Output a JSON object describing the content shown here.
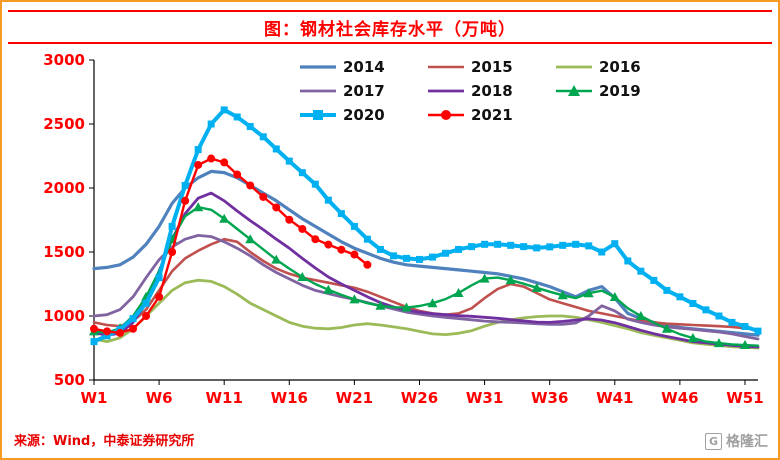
{
  "header": {
    "title": "图：钢材社会库存水平（万吨）"
  },
  "footer": {
    "source": "来源：Wind，中泰证券研究所",
    "logo_text": "格隆汇",
    "logo_letter": "G"
  },
  "theme": {
    "accent_red": "#FF0000",
    "frame_orange": "#F59A23",
    "logo_gray": "#A0A0A0"
  },
  "chart_data": {
    "type": "line",
    "title": "图：钢材社会库存水平（万吨）",
    "xlabel": "",
    "ylabel": "",
    "ylim": [
      500,
      3000
    ],
    "y_ticks": [
      500,
      1000,
      1500,
      2000,
      2500,
      3000
    ],
    "x_ticks": [
      "W1",
      "W6",
      "W11",
      "W16",
      "W21",
      "W26",
      "W31",
      "W36",
      "W41",
      "W46",
      "W51"
    ],
    "x_tick_weeks": [
      1,
      6,
      11,
      16,
      21,
      26,
      31,
      36,
      41,
      46,
      51
    ],
    "legend_position": "top-center",
    "grid": false,
    "series": [
      {
        "name": "2014",
        "color": "#4F81BD",
        "width": 3.2,
        "marker": "none",
        "values": [
          1370,
          1380,
          1400,
          1460,
          1560,
          1700,
          1880,
          2000,
          2080,
          2130,
          2120,
          2080,
          2020,
          1960,
          1900,
          1830,
          1760,
          1700,
          1640,
          1580,
          1530,
          1490,
          1450,
          1420,
          1400,
          1390,
          1380,
          1370,
          1360,
          1350,
          1340,
          1330,
          1310,
          1290,
          1260,
          1230,
          1190,
          1150,
          1200,
          1230,
          1140,
          1020,
          980,
          950,
          930,
          910,
          900,
          890,
          880,
          870,
          860,
          850
        ]
      },
      {
        "name": "2015",
        "color": "#C0504D",
        "width": 2.6,
        "marker": "none",
        "values": [
          950,
          930,
          920,
          960,
          1050,
          1200,
          1350,
          1450,
          1510,
          1560,
          1600,
          1580,
          1500,
          1430,
          1370,
          1330,
          1300,
          1280,
          1260,
          1240,
          1220,
          1190,
          1150,
          1110,
          1070,
          1040,
          1020,
          1010,
          1020,
          1060,
          1140,
          1210,
          1250,
          1230,
          1180,
          1130,
          1100,
          1070,
          1040,
          1020,
          1000,
          980,
          960,
          950,
          940,
          935,
          930,
          925,
          920,
          915,
          905,
          895
        ]
      },
      {
        "name": "2016",
        "color": "#9BBB59",
        "width": 2.8,
        "marker": "none",
        "values": [
          820,
          800,
          830,
          900,
          1000,
          1100,
          1200,
          1260,
          1280,
          1270,
          1230,
          1170,
          1100,
          1050,
          1000,
          950,
          920,
          905,
          900,
          910,
          930,
          940,
          930,
          915,
          900,
          880,
          860,
          855,
          865,
          885,
          920,
          950,
          970,
          985,
          995,
          1000,
          1000,
          990,
          970,
          950,
          925,
          900,
          870,
          850,
          830,
          810,
          790,
          780,
          770,
          760,
          755,
          750
        ]
      },
      {
        "name": "2017",
        "color": "#8064A2",
        "width": 2.8,
        "marker": "none",
        "values": [
          1000,
          1010,
          1050,
          1150,
          1300,
          1440,
          1540,
          1600,
          1630,
          1620,
          1580,
          1530,
          1470,
          1400,
          1340,
          1290,
          1240,
          1200,
          1175,
          1150,
          1130,
          1105,
          1080,
          1055,
          1030,
          1015,
          1000,
          990,
          980,
          970,
          960,
          955,
          950,
          945,
          940,
          935,
          935,
          945,
          1000,
          1080,
          1040,
          975,
          950,
          930,
          915,
          905,
          895,
          885,
          875,
          860,
          840,
          820
        ]
      },
      {
        "name": "2018",
        "color": "#7030A0",
        "width": 2.8,
        "marker": "none",
        "values": [
          870,
          850,
          865,
          950,
          1100,
          1350,
          1600,
          1800,
          1920,
          1960,
          1900,
          1820,
          1745,
          1675,
          1600,
          1530,
          1450,
          1375,
          1305,
          1250,
          1200,
          1150,
          1105,
          1070,
          1048,
          1030,
          1018,
          1010,
          1002,
          998,
          990,
          982,
          972,
          962,
          952,
          950,
          958,
          968,
          978,
          968,
          948,
          918,
          888,
          862,
          840,
          820,
          800,
          790,
          780,
          770,
          762,
          758
        ]
      },
      {
        "name": "2019",
        "color": "#00A550",
        "width": 2.4,
        "marker": "triangle",
        "values": [
          880,
          870,
          905,
          1000,
          1150,
          1350,
          1600,
          1780,
          1850,
          1830,
          1760,
          1680,
          1600,
          1520,
          1440,
          1370,
          1305,
          1250,
          1205,
          1165,
          1130,
          1100,
          1080,
          1068,
          1066,
          1078,
          1100,
          1132,
          1180,
          1240,
          1292,
          1300,
          1280,
          1252,
          1220,
          1190,
          1162,
          1140,
          1178,
          1198,
          1148,
          1060,
          1000,
          948,
          900,
          858,
          828,
          800,
          788,
          778,
          773,
          768
        ]
      },
      {
        "name": "2020",
        "color": "#00B0F0",
        "width": 4,
        "marker": "square",
        "values": [
          800,
          845,
          895,
          980,
          1100,
          1300,
          1700,
          2020,
          2300,
          2500,
          2610,
          2555,
          2480,
          2400,
          2305,
          2210,
          2120,
          2030,
          1905,
          1800,
          1700,
          1600,
          1520,
          1470,
          1450,
          1442,
          1460,
          1490,
          1520,
          1542,
          1560,
          1560,
          1552,
          1542,
          1532,
          1540,
          1552,
          1560,
          1548,
          1500,
          1565,
          1430,
          1350,
          1278,
          1200,
          1150,
          1098,
          1048,
          1000,
          950,
          918,
          882
        ]
      },
      {
        "name": "2021",
        "color": "#FF0000",
        "width": 2.4,
        "marker": "circle",
        "values": [
          900,
          880,
          868,
          900,
          1000,
          1150,
          1500,
          1900,
          2180,
          2230,
          2200,
          2105,
          2020,
          1930,
          1848,
          1752,
          1680,
          1600,
          1558,
          1518,
          1480,
          1400,
          null,
          null,
          null,
          null,
          null,
          null,
          null,
          null,
          null,
          null,
          null,
          null,
          null,
          null,
          null,
          null,
          null,
          null,
          null,
          null,
          null,
          null,
          null,
          null,
          null,
          null,
          null,
          null,
          null,
          null
        ]
      }
    ]
  }
}
